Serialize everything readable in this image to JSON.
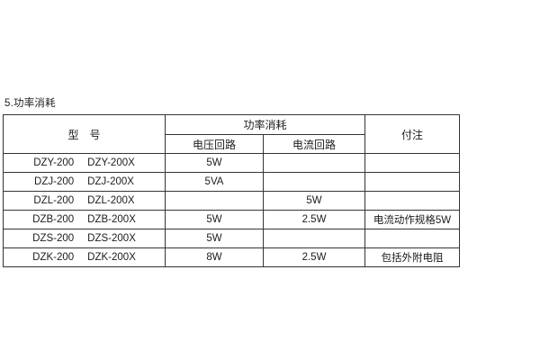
{
  "page": {
    "background": "#ffffff",
    "text_color": "#1c1c1c",
    "border_color": "#343434"
  },
  "section_title": "5.功率消耗",
  "table": {
    "headers": {
      "model": "型　号",
      "power": "功率消耗",
      "voltage_circuit": "电压回路",
      "current_circuit": "电流回路",
      "notes": "付注"
    },
    "rows": [
      {
        "model_a": "DZY-200",
        "model_b": "DZY-200X",
        "voltage": "5W",
        "current": "",
        "note": ""
      },
      {
        "model_a": "DZJ-200",
        "model_b": "DZJ-200X",
        "voltage": "5VA",
        "current": "",
        "note": ""
      },
      {
        "model_a": "DZL-200",
        "model_b": "DZL-200X",
        "voltage": "",
        "current": "5W",
        "note": ""
      },
      {
        "model_a": "DZB-200",
        "model_b": "DZB-200X",
        "voltage": "5W",
        "current": "2.5W",
        "note": "电流动作规格5W"
      },
      {
        "model_a": "DZS-200",
        "model_b": "DZS-200X",
        "voltage": "5W",
        "current": "",
        "note": ""
      },
      {
        "model_a": "DZK-200",
        "model_b": "DZK-200X",
        "voltage": "8W",
        "current": "2.5W",
        "note": "包括外附电阻"
      }
    ]
  }
}
